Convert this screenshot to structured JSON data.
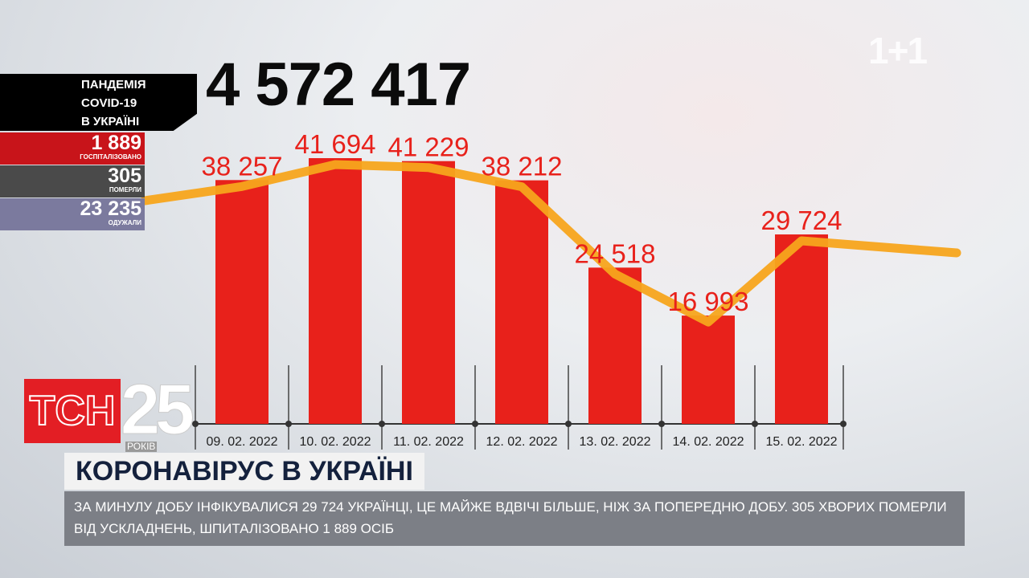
{
  "brand": {
    "channel_logo": "1+1",
    "show_logo": "ТСН",
    "anniversary": "25",
    "anniversary_label": "РОКІВ"
  },
  "total": "4 572 417",
  "panel": {
    "title_lines": [
      "ПАНДЕМІЯ",
      "COVID-19",
      "В УКРАЇНІ"
    ],
    "stats": [
      {
        "value": "1 889",
        "label": "ГОСПІТАЛІЗОВАНО",
        "color": "#c8141a"
      },
      {
        "value": "305",
        "label": "ПОМЕРЛИ",
        "color": "#4a4a4a"
      },
      {
        "value": "23 235",
        "label": "ОДУЖАЛИ",
        "color": "#7b7a9e"
      }
    ]
  },
  "headline": "КОРОНАВІРУС В УКРАЇНІ",
  "ticker": "ЗА МИНУЛУ ДОБУ ІНФІКУВАЛИСЯ 29 724 УКРАЇНЦІ, ЦЕ МАЙЖЕ ВДВІЧІ БІЛЬШЕ, НІЖ ЗА ПОПЕРЕДНЮ ДОБУ. 305 ХВОРИХ ПОМЕРЛИ ВІД УСКЛАДНЕНЬ, ШПИТАЛІЗОВАНО 1 889 ОСІБ",
  "chart_data": {
    "type": "bar",
    "categories": [
      "09. 02. 2022",
      "10. 02. 2022",
      "11. 02. 2022",
      "12. 02. 2022",
      "13. 02. 2022",
      "14. 02. 2022",
      "15. 02. 2022"
    ],
    "values": [
      38257,
      41694,
      41229,
      38212,
      24518,
      16993,
      29724
    ],
    "value_labels": [
      "38 257",
      "41 694",
      "41 229",
      "38 212",
      "24 518",
      "16 993",
      "29 724"
    ],
    "trend_line": true,
    "bar_color": "#e8211b",
    "line_color": "#f7a51c",
    "label_color": "#e8211b",
    "ylim": [
      0,
      41694
    ]
  }
}
